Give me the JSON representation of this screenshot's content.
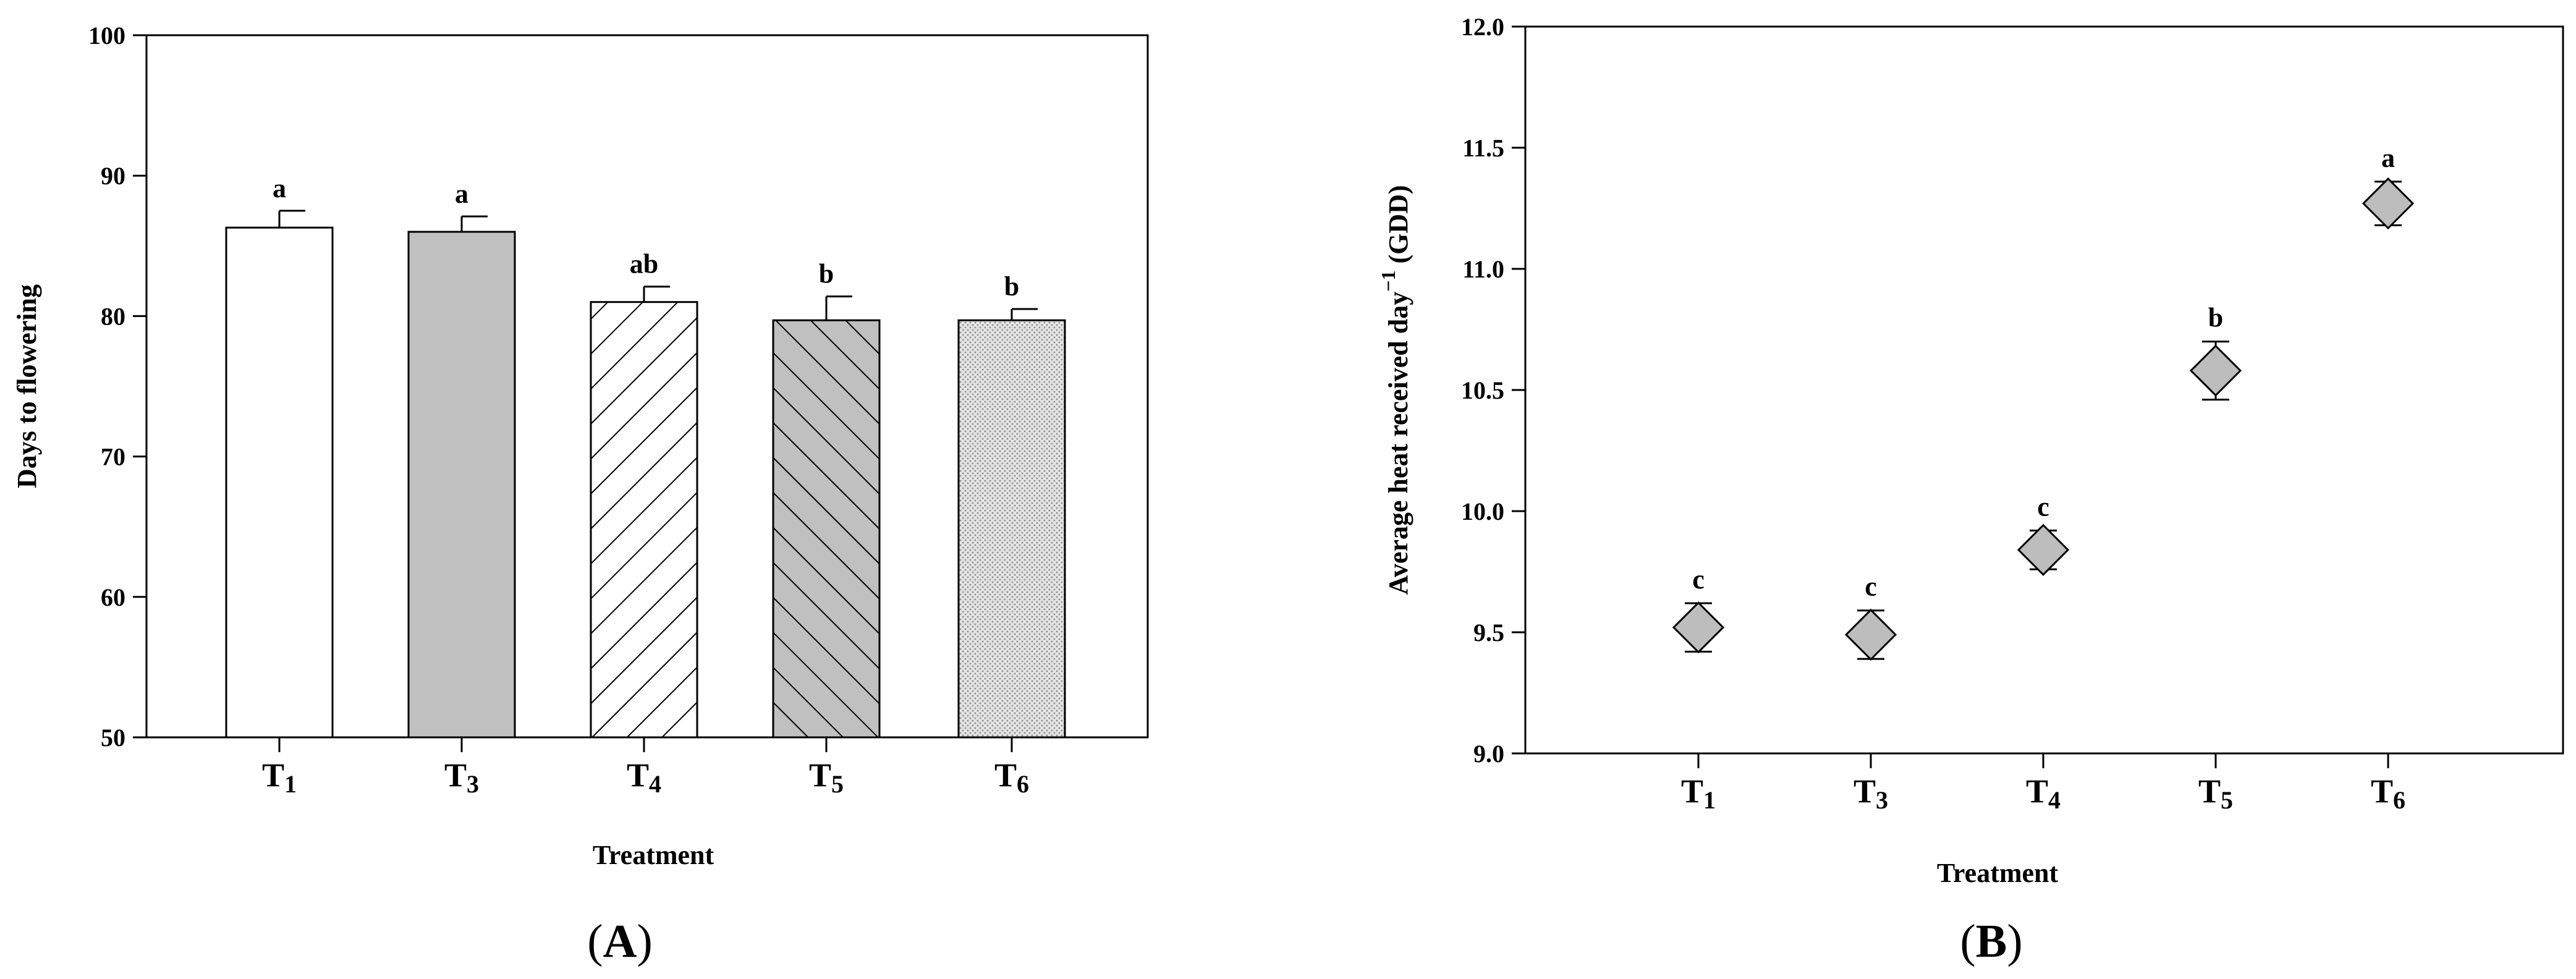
{
  "chart_data": [
    {
      "type": "bar",
      "panel_label": "A",
      "categories": [
        {
          "main": "T",
          "sub": "1"
        },
        {
          "main": "T",
          "sub": "3"
        },
        {
          "main": "T",
          "sub": "4"
        },
        {
          "main": "T",
          "sub": "5"
        },
        {
          "main": "T",
          "sub": "6"
        }
      ],
      "values": [
        86.3,
        86.0,
        81.0,
        79.7,
        79.7
      ],
      "errors": [
        1.2,
        1.1,
        1.1,
        1.7,
        0.8
      ],
      "significance": [
        "a",
        "a",
        "ab",
        "b",
        "b"
      ],
      "fills": [
        "white",
        "gray",
        "backslash-hatch",
        "gray-slash-hatch",
        "dotted"
      ],
      "xlabel": "Treatment",
      "ylabel": "Days to flowering",
      "ylim": [
        50,
        100
      ],
      "yticks": [
        "50",
        "60",
        "70",
        "80",
        "90",
        "100"
      ],
      "grid": false
    },
    {
      "type": "scatter",
      "panel_label": "B",
      "categories": [
        {
          "main": "T",
          "sub": "1"
        },
        {
          "main": "T",
          "sub": "3"
        },
        {
          "main": "T",
          "sub": "4"
        },
        {
          "main": "T",
          "sub": "5"
        },
        {
          "main": "T",
          "sub": "6"
        }
      ],
      "values": [
        9.52,
        9.49,
        9.84,
        10.58,
        11.27
      ],
      "errors": [
        0.1,
        0.1,
        0.08,
        0.12,
        0.09
      ],
      "significance": [
        "c",
        "c",
        "c",
        "b",
        "a"
      ],
      "marker": "diamond",
      "marker_color": "#bdbdbd",
      "xlabel": "Treatment",
      "ylabel_main": "Average heat received day",
      "ylabel_sup": "−1",
      "ylabel_unit": " (GDD)",
      "ylim": [
        9.0,
        12.0
      ],
      "yticks": [
        "9.0",
        "9.5",
        "10.0",
        "10.5",
        "11.0",
        "11.5",
        "12.0"
      ],
      "grid": false
    }
  ]
}
